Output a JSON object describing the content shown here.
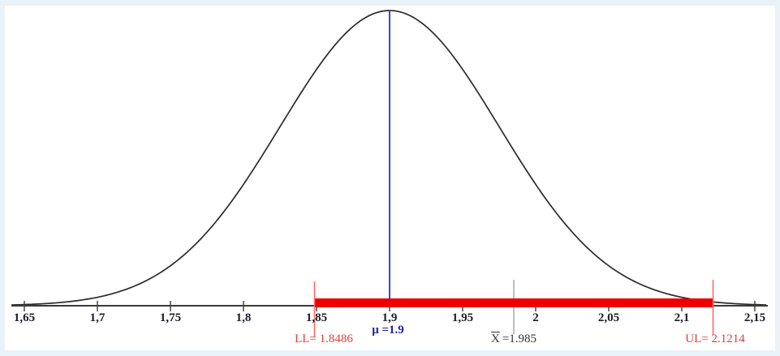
{
  "chart_data": {
    "type": "line",
    "description": "Normal distribution bell curve with population mean line, sample mean line and red confidence-interval band drawn on the x-axis",
    "x_axis": {
      "tick_values": [
        1.65,
        1.7,
        1.75,
        1.8,
        1.85,
        1.9,
        1.95,
        2,
        2.05,
        2.1,
        2.15
      ],
      "tick_labels": [
        "1,65",
        "1,7",
        "1,75",
        "1,8",
        "1,85",
        "1,9",
        "1,95",
        "2",
        "2,05",
        "2,1",
        "2,15"
      ],
      "xlim": [
        1.64,
        2.16
      ],
      "grid": false
    },
    "curve": {
      "distribution": "normal",
      "mean": 1.9,
      "sigma": 0.075
    },
    "mean_line": {
      "value": 1.9,
      "label": "μ =1.9"
    },
    "sample_mean_line": {
      "value": 1.985,
      "label_symbol": "X",
      "label_value": "=1.985"
    },
    "interval": {
      "lower": 1.8486,
      "upper": 2.1214,
      "lower_label": "LL= 1.8486",
      "upper_label": "UL= 2.1214"
    },
    "colors": {
      "curve": "#2b2b2b",
      "axis": "#3a3a3a",
      "tick_text": "#1a1a2a",
      "mean_line": "#4040e0",
      "mean_text": "#2323a8",
      "interval_band": "#ee0000",
      "interval_line": "#fa6a6a",
      "interval_text": "#e23c3c",
      "sample_mean_line": "#a9a9a9",
      "sample_mean_text": "#333333",
      "frame": "#e9f1f9",
      "plot_bg": "#ffffff"
    }
  }
}
